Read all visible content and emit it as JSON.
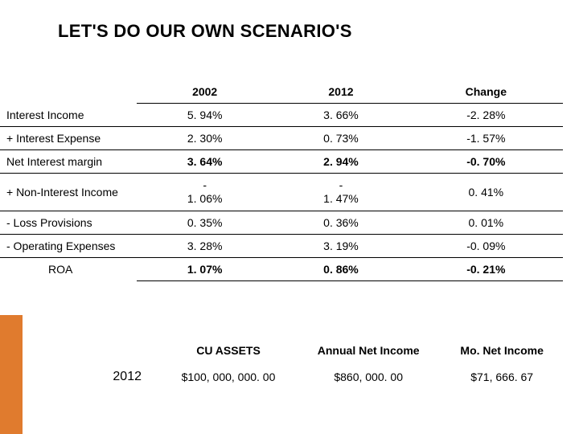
{
  "title": "LET'S DO OUR OWN SCENARIO'S",
  "accent_color": "#e07b2e",
  "main_table": {
    "headers": [
      "2002",
      "2012",
      "Change"
    ],
    "rows": [
      {
        "label": "  Interest Income",
        "v1": "5. 94%",
        "v2": "3. 66%",
        "v3": "-2. 28%",
        "bold": false
      },
      {
        "label": "+ Interest Expense",
        "v1": "2. 30%",
        "v2": "0. 73%",
        "v3": "-1. 57%",
        "bold": false
      },
      {
        "label": "Net Interest margin",
        "v1": "3. 64%",
        "v2": "2. 94%",
        "v3": "-0. 70%",
        "bold": true
      },
      {
        "label": "+ Non-Interest Income",
        "v1_pre": "-",
        "v1": "1. 06%",
        "v2_pre": "-",
        "v2": "1. 47%",
        "v3": "0. 41%",
        "bold": false,
        "multiline": true
      },
      {
        "label": "- Loss Provisions",
        "v1": "0. 35%",
        "v2": "0. 36%",
        "v3": "0. 01%",
        "bold": false
      },
      {
        "label": "- Operating Expenses",
        "v1": "3. 28%",
        "v2": "3. 19%",
        "v3": "-0. 09%",
        "bold": false
      },
      {
        "label": "ROA",
        "v1": "1. 07%",
        "v2": "0. 86%",
        "v3": "-0. 21%",
        "bold": true,
        "roa": true
      }
    ]
  },
  "sub_table": {
    "headers": [
      "CU ASSETS",
      "Annual Net Income",
      "Mo. Net Income"
    ],
    "row": {
      "year": "2012",
      "assets": "$100, 000, 000. 00",
      "annual": "$860, 000. 00",
      "monthly": "$71, 666. 67"
    }
  }
}
